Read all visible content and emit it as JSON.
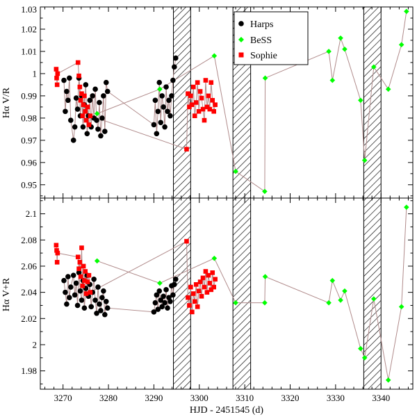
{
  "chart_data": [
    {
      "type": "scatter",
      "panel": "top",
      "ylabel": "Hα V/R",
      "xlabel": "",
      "xlim": [
        3265,
        3347
      ],
      "ylim": [
        0.944,
        1.03
      ],
      "x_ticks": [
        3270,
        3280,
        3290,
        3300,
        3310,
        3320,
        3330,
        3340
      ],
      "x_tick_labels": [
        "",
        "",
        "",
        "",
        "",
        "",
        "",
        ""
      ],
      "y_ticks": [
        0.95,
        0.96,
        0.97,
        0.98,
        0.99,
        1.0,
        1.01,
        1.02,
        1.03
      ],
      "y_tick_labels": [
        "0.95",
        "0.96",
        "0.97",
        "0.98",
        "0.99",
        "1",
        "1.01",
        "1.02",
        "1.03"
      ],
      "shaded_intervals": [
        [
          3294.3,
          3298.1
        ],
        [
          3307.4,
          3311.3
        ],
        [
          3336.2,
          3340.0
        ]
      ],
      "legend": {
        "position": "top-center",
        "entries": [
          {
            "name": "Harps",
            "marker": "circle",
            "color": "#000000"
          },
          {
            "name": "BeSS",
            "marker": "diamond",
            "color": "#00ff00"
          },
          {
            "name": "Sophie",
            "marker": "square",
            "color": "#ff0000"
          }
        ]
      },
      "series": [
        {
          "name": "Harps",
          "color": "#000000",
          "marker": "circle",
          "connect": true,
          "x": [
            3270.2,
            3270.5,
            3270.8,
            3271.1,
            3271.4,
            3271.7,
            3272.3,
            3272.6,
            3272.9,
            3273.2,
            3273.5,
            3273.8,
            3274.1,
            3274.4,
            3274.7,
            3275.0,
            3275.3,
            3275.6,
            3275.9,
            3276.2,
            3276.5,
            3276.8,
            3277.1,
            3277.4,
            3277.7,
            3278.0,
            3278.3,
            3278.6,
            3278.9,
            3279.2,
            3279.5,
            3279.8,
            3290.0,
            3290.3,
            3290.6,
            3290.9,
            3291.2,
            3291.5,
            3291.8,
            3292.1,
            3292.4,
            3292.7,
            3293.0,
            3293.3,
            3293.6,
            3293.9,
            3294.2,
            3294.5,
            3294.8
          ],
          "y": [
            0.997,
            0.983,
            0.992,
            0.988,
            0.998,
            0.979,
            0.97,
            0.976,
            0.989,
            0.984,
            0.998,
            0.981,
            0.99,
            0.976,
            0.986,
            0.995,
            0.973,
            0.981,
            0.988,
            0.976,
            0.99,
            0.98,
            0.993,
            0.979,
            0.975,
            0.987,
            0.972,
            0.98,
            0.99,
            0.974,
            0.996,
            0.992,
            0.977,
            0.988,
            0.973,
            0.983,
            0.996,
            0.978,
            0.99,
            0.985,
            0.976,
            0.994,
            0.983,
            0.988,
            0.981,
            0.99,
            0.997,
            1.003,
            1.007
          ]
        },
        {
          "name": "Sophie",
          "color": "#ff0000",
          "marker": "square",
          "connect": true,
          "x": [
            3268.5,
            3268.6,
            3268.7,
            3268.8,
            3273.3,
            3273.5,
            3273.7,
            3273.9,
            3274.1,
            3274.3,
            3274.5,
            3274.7,
            3274.9,
            3275.1,
            3275.4,
            3275.7,
            3276.0,
            3297.2,
            3297.5,
            3297.8,
            3298.1,
            3298.4,
            3298.7,
            3299.0,
            3299.3,
            3299.6,
            3299.9,
            3300.2,
            3300.5,
            3300.8,
            3301.1,
            3301.4,
            3301.7,
            3302.0,
            3302.3,
            3302.6,
            3302.9,
            3303.2,
            3303.5
          ],
          "y": [
            1.002,
            0.998,
            0.995,
            1.0,
            1.005,
            0.999,
            0.994,
            0.988,
            0.991,
            0.981,
            0.986,
            0.99,
            0.983,
            0.979,
            0.985,
            0.977,
            0.981,
            0.966,
            0.991,
            0.985,
            0.99,
            0.986,
            0.994,
            0.981,
            0.987,
            0.996,
            0.983,
            0.992,
            0.989,
            0.984,
            0.979,
            0.997,
            0.985,
            0.99,
            0.984,
            0.996,
            0.988,
            0.983,
            0.986
          ]
        },
        {
          "name": "BeSS",
          "color": "#00ff00",
          "marker": "diamond",
          "connect": true,
          "x": [
            3277.5,
            3291.3,
            3303.3,
            3308.0,
            3314.4,
            3314.5,
            3328.5,
            3329.3,
            3331.1,
            3332.0,
            3335.5,
            3336.4,
            3338.4,
            3341.6,
            3344.5,
            3345.6
          ],
          "y": [
            0.982,
            0.993,
            1.008,
            0.956,
            0.947,
            0.998,
            1.01,
            0.997,
            1.016,
            1.011,
            0.988,
            0.961,
            1.003,
            0.993,
            1.013,
            1.028
          ]
        }
      ]
    },
    {
      "type": "scatter",
      "panel": "bottom",
      "ylabel": "Hα V+R",
      "xlabel": "HJD - 2451545 (d)",
      "xlim": [
        3265,
        3347
      ],
      "ylim": [
        1.966,
        2.112
      ],
      "x_ticks": [
        3270,
        3280,
        3290,
        3300,
        3310,
        3320,
        3330,
        3340
      ],
      "x_tick_labels": [
        "3270",
        "3280",
        "3290",
        "3300",
        "3310",
        "3320",
        "3330",
        "3340"
      ],
      "y_ticks": [
        1.98,
        2.0,
        2.02,
        2.04,
        2.06,
        2.08,
        2.1
      ],
      "y_tick_labels": [
        "1.98",
        "2",
        "2.02",
        "2.04",
        "2.06",
        "2.08",
        "2.1"
      ],
      "shaded_intervals": [
        [
          3294.3,
          3298.1
        ],
        [
          3307.4,
          3311.3
        ],
        [
          3336.2,
          3340.0
        ]
      ],
      "series": [
        {
          "name": "Harps",
          "color": "#000000",
          "marker": "circle",
          "connect": true,
          "x": [
            3270.2,
            3270.5,
            3270.8,
            3271.1,
            3271.4,
            3271.7,
            3272.3,
            3272.6,
            3272.9,
            3273.2,
            3273.5,
            3273.8,
            3274.1,
            3274.4,
            3274.7,
            3275.0,
            3275.3,
            3275.6,
            3275.9,
            3276.2,
            3276.5,
            3276.8,
            3277.1,
            3277.4,
            3277.7,
            3278.0,
            3278.3,
            3278.6,
            3278.9,
            3279.2,
            3279.5,
            3279.8,
            3290.0,
            3290.3,
            3290.6,
            3290.9,
            3291.2,
            3291.5,
            3291.8,
            3292.1,
            3292.4,
            3292.7,
            3293.0,
            3293.3,
            3293.6,
            3293.9,
            3294.2,
            3294.5,
            3294.8
          ],
          "y": [
            2.049,
            2.04,
            2.031,
            2.052,
            2.036,
            2.044,
            2.053,
            2.038,
            2.047,
            2.03,
            2.055,
            2.041,
            2.034,
            2.049,
            2.028,
            2.043,
            2.053,
            2.037,
            2.046,
            2.029,
            2.04,
            2.05,
            2.034,
            2.024,
            2.044,
            2.031,
            2.026,
            2.036,
            2.041,
            2.023,
            2.033,
            2.028,
            2.025,
            2.032,
            2.038,
            2.027,
            2.041,
            2.034,
            2.029,
            2.037,
            2.032,
            2.042,
            2.028,
            2.036,
            2.033,
            2.045,
            2.038,
            2.046,
            2.05
          ]
        },
        {
          "name": "Sophie",
          "color": "#ff0000",
          "marker": "square",
          "connect": true,
          "x": [
            3268.5,
            3268.6,
            3268.7,
            3268.8,
            3273.3,
            3273.5,
            3273.7,
            3273.9,
            3274.1,
            3274.3,
            3274.5,
            3274.7,
            3274.9,
            3275.1,
            3275.4,
            3275.7,
            3276.0,
            3297.2,
            3297.5,
            3297.8,
            3298.1,
            3298.4,
            3298.7,
            3299.0,
            3299.3,
            3299.6,
            3299.9,
            3300.2,
            3300.5,
            3300.8,
            3301.1,
            3301.4,
            3301.7,
            3302.0,
            3302.3,
            3302.6,
            3302.9,
            3303.2,
            3303.5
          ],
          "y": [
            2.076,
            2.072,
            2.063,
            2.07,
            2.067,
            2.058,
            2.063,
            2.052,
            2.074,
            2.045,
            2.06,
            2.049,
            2.056,
            2.039,
            2.048,
            2.053,
            2.04,
            2.079,
            2.036,
            2.03,
            2.044,
            2.025,
            2.039,
            2.033,
            2.046,
            2.029,
            2.041,
            2.048,
            2.037,
            2.051,
            2.044,
            2.056,
            2.04,
            2.053,
            2.047,
            2.042,
            2.055,
            2.044,
            2.05
          ]
        },
        {
          "name": "BeSS",
          "color": "#00ff00",
          "marker": "diamond",
          "connect": true,
          "x": [
            3277.5,
            3291.3,
            3303.3,
            3308.0,
            3314.4,
            3314.5,
            3328.5,
            3329.3,
            3331.1,
            3332.0,
            3335.5,
            3336.4,
            3338.4,
            3341.6,
            3344.5,
            3345.6
          ],
          "y": [
            2.064,
            2.047,
            2.066,
            2.032,
            2.032,
            2.052,
            2.032,
            2.049,
            2.034,
            2.041,
            1.997,
            1.99,
            2.035,
            1.973,
            2.029,
            2.105
          ]
        }
      ]
    }
  ]
}
